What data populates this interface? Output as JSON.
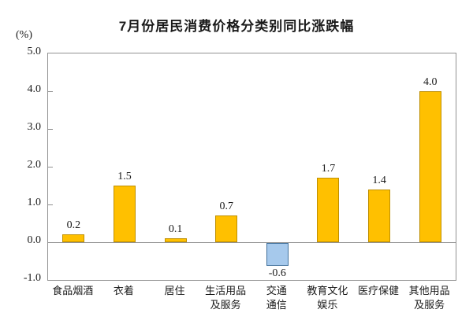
{
  "header": {
    "title": "7月份居民消费价格分类别同比涨跌幅"
  },
  "y_axis": {
    "unit_label": "(%)"
  },
  "chart_data": {
    "type": "bar",
    "title": "7月份居民消费价格分类别同比涨跌幅",
    "xlabel": "",
    "ylabel": "(%)",
    "categories": [
      "食品烟酒",
      "衣着",
      "居住",
      "生活用品\n及服务",
      "交通\n通信",
      "教育文化\n娱乐",
      "医疗保健",
      "其他用品\n及服务"
    ],
    "values": [
      0.2,
      1.5,
      0.1,
      0.7,
      -0.6,
      1.7,
      1.4,
      4.0
    ],
    "data_labels": [
      "0.2",
      "1.5",
      "0.1",
      "0.7",
      "-0.6",
      "1.7",
      "1.4",
      "4.0"
    ],
    "ylim": [
      -1.0,
      5.0
    ],
    "ytick_step": 1.0,
    "ytick_labels": [
      "5.0",
      "4.0",
      "3.0",
      "2.0",
      "1.0",
      "0.0",
      "-1.0"
    ],
    "grid": false,
    "legend_position": "none",
    "colors": {
      "positive_fill": "#FFC000",
      "positive_border": "#BF8F00",
      "negative_fill": "#A6C9EC",
      "negative_border": "#41719C",
      "axis": "#919191",
      "text": "#1a1a1a"
    }
  }
}
